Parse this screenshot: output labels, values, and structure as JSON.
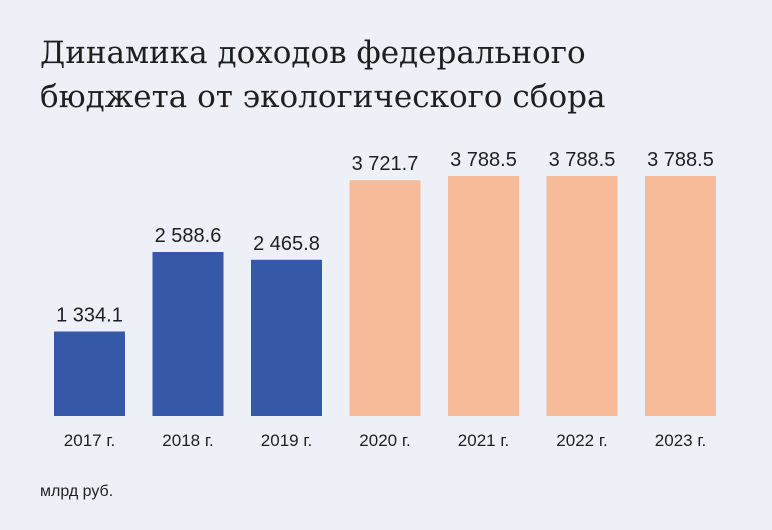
{
  "chart_data": {
    "type": "bar",
    "title_lines": [
      "Динамика доходов федерального",
      "бюджета от экологического сбора"
    ],
    "unit": "млрд руб.",
    "categories": [
      "2017 г.",
      "2018 г.",
      "2019 г.",
      "2020 г.",
      "2021 г.",
      "2022 г.",
      "2023 г."
    ],
    "values": [
      1334.1,
      2588.6,
      2465.8,
      3721.7,
      3788.5,
      3788.5,
      3788.5
    ],
    "value_labels": [
      "1 334.1",
      "2 588.6",
      "2 465.8",
      "3 721.7",
      "3 788.5",
      "3 788.5",
      "3 788.5"
    ],
    "bar_colors": [
      "#3558a8",
      "#3558a8",
      "#3558a8",
      "#f8bb99",
      "#f8bb99",
      "#f8bb99",
      "#f8bb99"
    ],
    "ylim": [
      0,
      3788.5
    ],
    "grid": false,
    "legend": "none"
  },
  "colors": {
    "background": "#edf0f7",
    "text": "#1f1f1f",
    "actual": "#3558a8",
    "forecast": "#f8bb99"
  }
}
